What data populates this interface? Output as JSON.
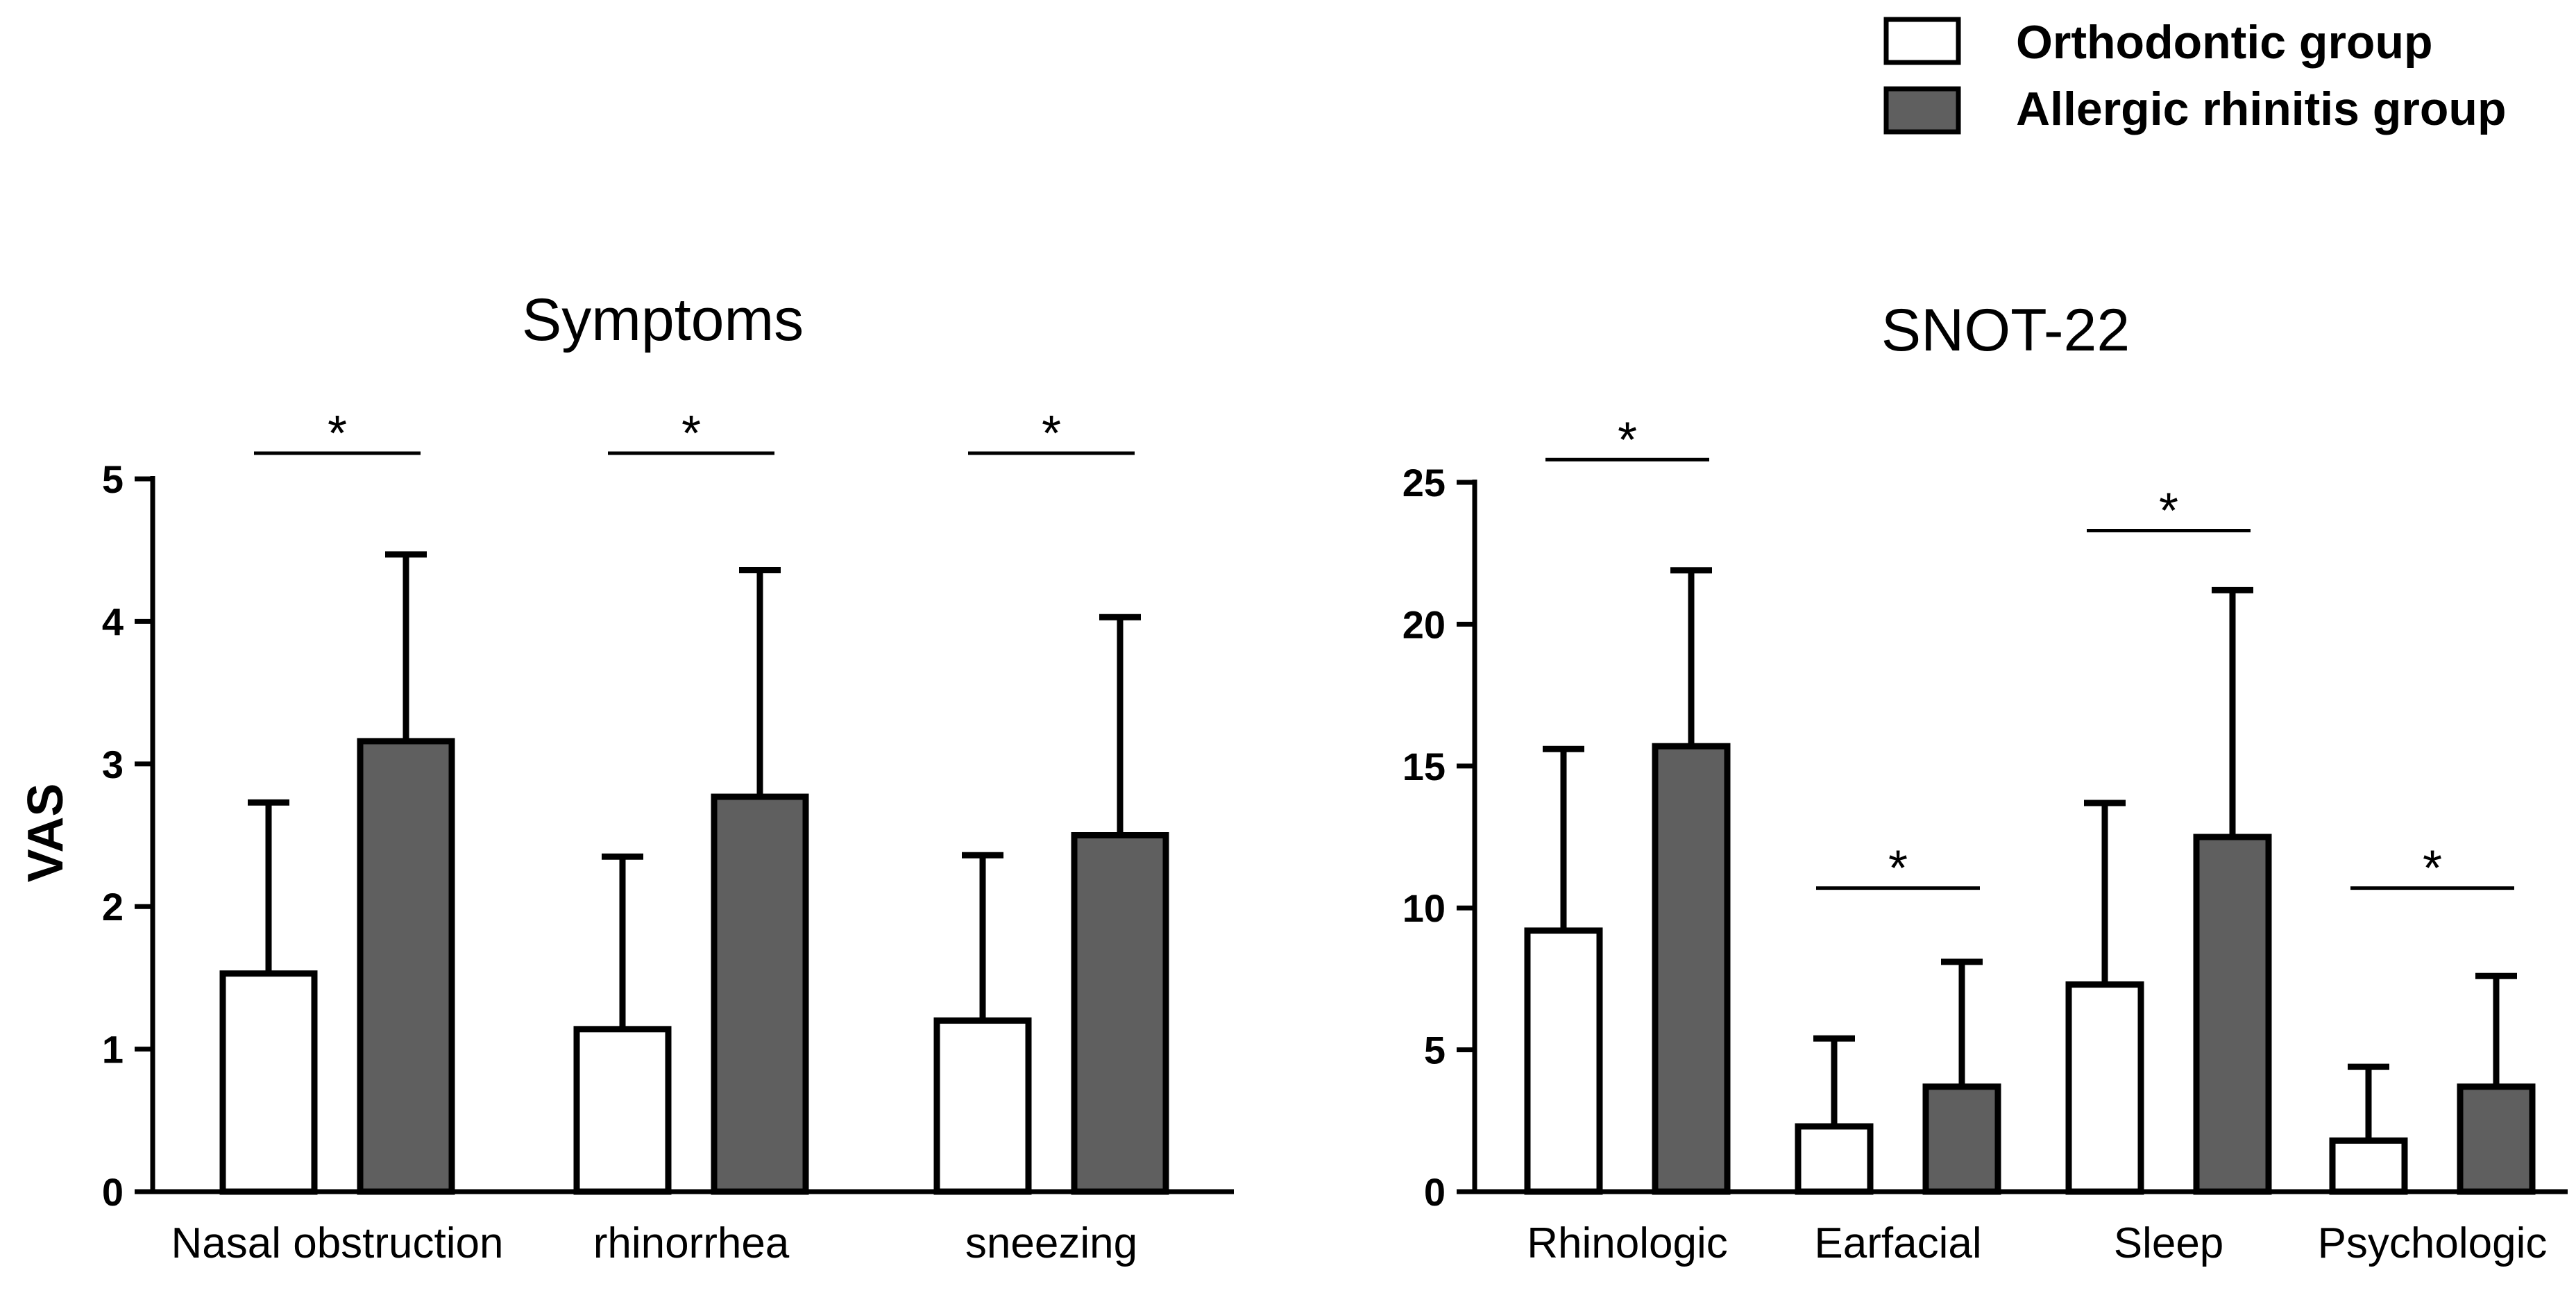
{
  "colors": {
    "orthodontic": "#ffffff",
    "allergic": "#5f5f5f",
    "stroke": "#000000"
  },
  "legend": [
    {
      "name": "Orthodontic group",
      "color": "#ffffff"
    },
    {
      "name": "Allergic rhinitis group",
      "color": "#5f5f5f"
    }
  ],
  "chart_data": [
    {
      "type": "bar",
      "title": "Symptoms",
      "ylabel": "VAS",
      "xlabel": "",
      "ylim": [
        0,
        5
      ],
      "yticks": [
        0,
        1,
        2,
        3,
        4,
        5
      ],
      "categories": [
        "Nasal obstruction",
        "rhinorrhea",
        "sneezing"
      ],
      "series": [
        {
          "name": "Orthodontic group",
          "values": [
            1.53,
            1.14,
            1.2
          ],
          "error_upper": [
            2.73,
            2.35,
            2.36
          ]
        },
        {
          "name": "Allergic rhinitis group",
          "values": [
            3.16,
            2.77,
            2.5
          ],
          "error_upper": [
            4.47,
            4.36,
            4.03
          ]
        }
      ],
      "significance": [
        {
          "category": "Nasal obstruction",
          "marker": "*",
          "level": 5.18
        },
        {
          "category": "rhinorrhea",
          "marker": "*",
          "level": 5.18
        },
        {
          "category": "sneezing",
          "marker": "*",
          "level": 5.18
        }
      ]
    },
    {
      "type": "bar",
      "title": "SNOT-22",
      "ylabel": "",
      "xlabel": "",
      "ylim": [
        0,
        25
      ],
      "yticks": [
        0,
        5,
        10,
        15,
        20,
        25
      ],
      "categories": [
        "Rhinologic",
        "Earfacial",
        "Sleep",
        "Psychologic"
      ],
      "series": [
        {
          "name": "Orthodontic group",
          "values": [
            9.2,
            2.3,
            7.3,
            1.8
          ],
          "error_upper": [
            15.6,
            5.4,
            13.7,
            4.4
          ]
        },
        {
          "name": "Allergic rhinitis group",
          "values": [
            15.7,
            3.7,
            12.5,
            3.7
          ],
          "error_upper": [
            21.9,
            8.1,
            21.2,
            7.6
          ]
        }
      ],
      "significance": [
        {
          "category": "Rhinologic",
          "marker": "*",
          "level": 25.8
        },
        {
          "category": "Earfacial",
          "marker": "*",
          "level": 10.7
        },
        {
          "category": "Sleep",
          "marker": "*",
          "level": 23.3
        },
        {
          "category": "Psychologic",
          "marker": "*",
          "level": 10.7
        }
      ]
    }
  ]
}
